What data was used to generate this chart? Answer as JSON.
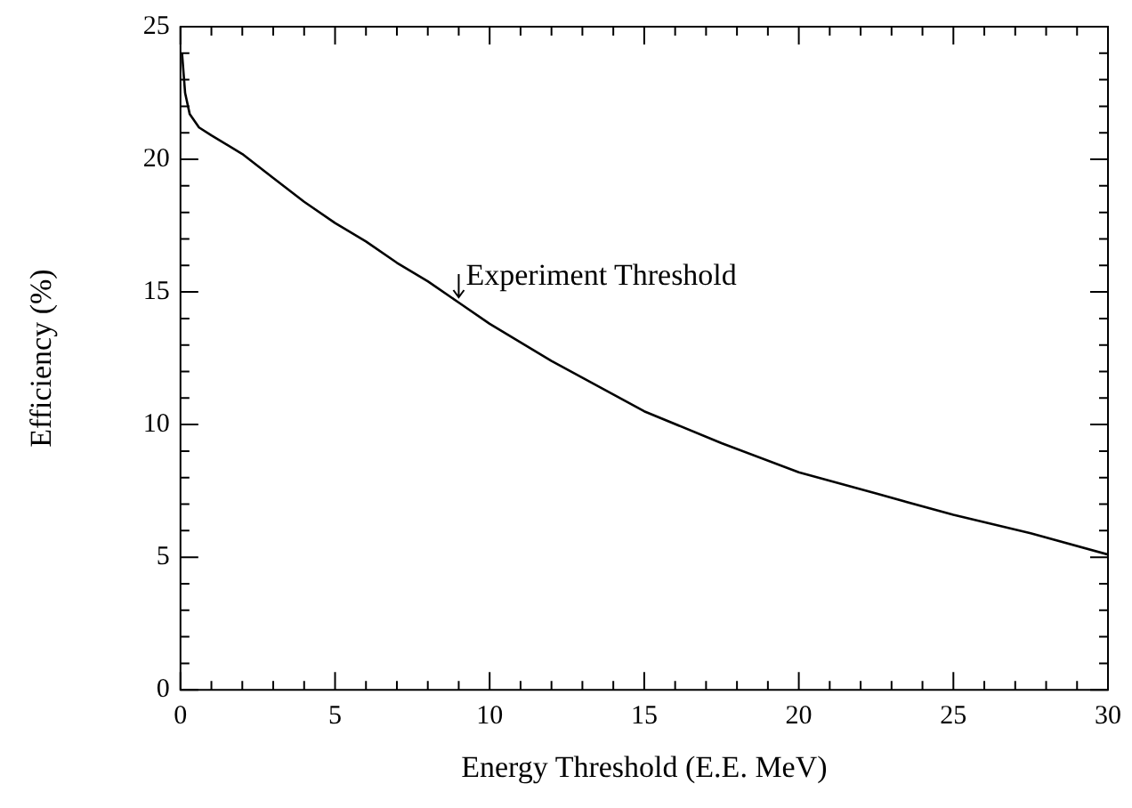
{
  "chart_data": {
    "type": "line",
    "xlabel": "Energy Threshold (E.E. MeV)",
    "ylabel": "Efficiency (%)",
    "series": [
      {
        "color": "#000000",
        "x": [
          0.05,
          0.15,
          0.3,
          0.6,
          1,
          2,
          3,
          4,
          5,
          6,
          7,
          8,
          9,
          10,
          12,
          15,
          17.5,
          20,
          22.5,
          25,
          27.5,
          30
        ],
        "values": [
          24,
          22.5,
          21.7,
          21.2,
          20.9,
          20.2,
          19.3,
          18.4,
          17.6,
          16.9,
          16.1,
          15.4,
          14.6,
          13.8,
          12.4,
          10.5,
          9.3,
          8.2,
          7.4,
          6.6,
          5.9,
          5.1
        ]
      }
    ],
    "xlim": [
      0,
      30
    ],
    "ylim": [
      0,
      25
    ],
    "xticks": [
      0,
      {
        "value": 1,
        "label": null
      },
      {
        "value": 2,
        "label": null
      },
      {
        "value": 3,
        "label": null
      },
      {
        "value": 4,
        "label": null
      },
      5,
      {
        "value": 6,
        "label": null
      },
      {
        "value": 7,
        "label": null
      },
      {
        "value": 8,
        "label": null
      },
      {
        "value": 9,
        "label": null
      },
      10,
      {
        "value": 11,
        "label": null
      },
      {
        "value": 12,
        "label": null
      },
      {
        "value": 13,
        "label": null
      },
      {
        "value": 14,
        "label": null
      },
      15,
      {
        "value": 16,
        "label": null
      },
      {
        "value": 17,
        "label": null
      },
      {
        "value": 18,
        "label": null
      },
      {
        "value": 19,
        "label": null
      },
      20,
      {
        "value": 21,
        "label": null
      },
      {
        "value": 22,
        "label": null
      },
      {
        "value": 23,
        "label": null
      },
      {
        "value": 24,
        "label": null
      },
      25,
      {
        "value": 26,
        "label": null
      },
      {
        "value": 27,
        "label": null
      },
      {
        "value": 28,
        "label": null
      },
      {
        "value": 29,
        "label": null
      },
      30
    ],
    "yticks": [
      0,
      {
        "value": 1,
        "label": null
      },
      {
        "value": 2,
        "label": null
      },
      {
        "value": 3,
        "label": null
      },
      {
        "value": 4,
        "label": null
      },
      5,
      {
        "value": 6,
        "label": null
      },
      {
        "value": 7,
        "label": null
      },
      {
        "value": 8,
        "label": null
      },
      {
        "value": 9,
        "label": null
      },
      10,
      {
        "value": 11,
        "label": null
      },
      {
        "value": 12,
        "label": null
      },
      {
        "value": 13,
        "label": null
      },
      {
        "value": 14,
        "label": null
      },
      15,
      {
        "value": 16,
        "label": null
      },
      {
        "value": 17,
        "label": null
      },
      {
        "value": 18,
        "label": null
      },
      {
        "value": 19,
        "label": null
      },
      20,
      {
        "value": 21,
        "label": null
      },
      {
        "value": 22,
        "label": null
      },
      {
        "value": 23,
        "label": null
      },
      {
        "value": 24,
        "label": null
      },
      25
    ],
    "annotations": [
      {
        "text": "Experiment Threshold",
        "x": 9,
        "y": 14.6
      }
    ],
    "grid": false,
    "legend": false,
    "marker": "none",
    "line_style": "solid"
  }
}
